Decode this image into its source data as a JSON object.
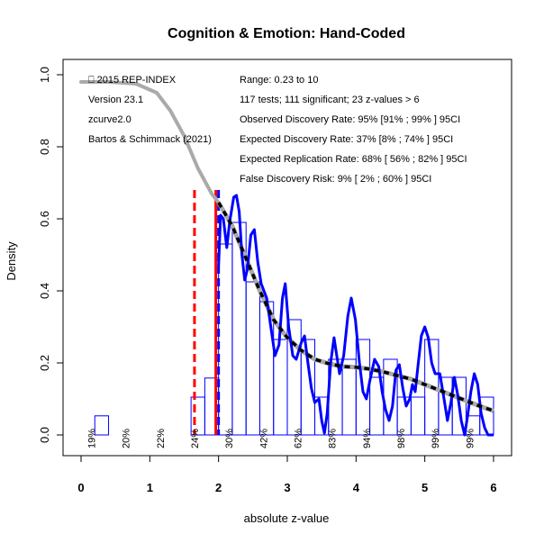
{
  "chart_data": {
    "type": "histogram",
    "title": "Cognition & Emotion: Hand-Coded",
    "xlabel": "absolute z-value",
    "ylabel": "Density",
    "xlim": [
      0,
      6
    ],
    "ylim": [
      0,
      1.0
    ],
    "x_ticks": [
      "0",
      "1",
      "2",
      "3",
      "4",
      "5",
      "6"
    ],
    "y_ticks": [
      "0.0",
      "0.2",
      "0.4",
      "0.6",
      "0.8",
      "1.0"
    ],
    "x_tick_values": [
      0,
      1,
      2,
      3,
      4,
      5,
      6
    ],
    "y_tick_values": [
      0,
      0.2,
      0.4,
      0.6,
      0.8,
      1.0
    ],
    "bin_width": 0.2,
    "bins": [
      {
        "x0": 0.2,
        "density": 0.053
      },
      {
        "x0": 0.4,
        "density": 0.0
      },
      {
        "x0": 0.6,
        "density": 0.0
      },
      {
        "x0": 0.8,
        "density": 0.0
      },
      {
        "x0": 1.0,
        "density": 0.0
      },
      {
        "x0": 1.2,
        "density": 0.0
      },
      {
        "x0": 1.4,
        "density": 0.0
      },
      {
        "x0": 1.6,
        "density": 0.105
      },
      {
        "x0": 1.8,
        "density": 0.158
      },
      {
        "x0": 2.0,
        "density": 0.53
      },
      {
        "x0": 2.2,
        "density": 0.59
      },
      {
        "x0": 2.4,
        "density": 0.425
      },
      {
        "x0": 2.6,
        "density": 0.37
      },
      {
        "x0": 2.8,
        "density": 0.265
      },
      {
        "x0": 3.0,
        "density": 0.32
      },
      {
        "x0": 3.2,
        "density": 0.265
      },
      {
        "x0": 3.4,
        "density": 0.105
      },
      {
        "x0": 3.6,
        "density": 0.21
      },
      {
        "x0": 3.8,
        "density": 0.21
      },
      {
        "x0": 4.0,
        "density": 0.265
      },
      {
        "x0": 4.2,
        "density": 0.16
      },
      {
        "x0": 4.4,
        "density": 0.21
      },
      {
        "x0": 4.6,
        "density": 0.105
      },
      {
        "x0": 4.8,
        "density": 0.105
      },
      {
        "x0": 5.0,
        "density": 0.265
      },
      {
        "x0": 5.2,
        "density": 0.16
      },
      {
        "x0": 5.4,
        "density": 0.16
      },
      {
        "x0": 5.6,
        "density": 0.053
      },
      {
        "x0": 5.8,
        "density": 0.105
      }
    ],
    "power_labels": [
      {
        "x": 0.15,
        "label": "19%"
      },
      {
        "x": 0.65,
        "label": "20%"
      },
      {
        "x": 1.15,
        "label": "22%"
      },
      {
        "x": 1.65,
        "label": "24%"
      },
      {
        "x": 2.15,
        "label": "30%"
      },
      {
        "x": 2.65,
        "label": "42%"
      },
      {
        "x": 3.15,
        "label": "62%"
      },
      {
        "x": 3.65,
        "label": "83%"
      },
      {
        "x": 4.15,
        "label": "94%"
      },
      {
        "x": 4.65,
        "label": "98%"
      },
      {
        "x": 5.15,
        "label": "99%"
      },
      {
        "x": 5.65,
        "label": "99%"
      }
    ],
    "vertical_lines": [
      {
        "x": 1.65,
        "style": "dashed",
        "color": "#ff0000"
      },
      {
        "x": 1.96,
        "style": "solid",
        "color": "#ff0000"
      },
      {
        "x": 2.0,
        "style": "dashed",
        "color": "#0000ff"
      }
    ],
    "model_curve_gray": [
      [
        0,
        0.98
      ],
      [
        0.4,
        0.98
      ],
      [
        0.8,
        0.975
      ],
      [
        1.1,
        0.95
      ],
      [
        1.3,
        0.9
      ],
      [
        1.5,
        0.83
      ],
      [
        1.7,
        0.74
      ],
      [
        1.9,
        0.67
      ],
      [
        2.0,
        0.645
      ]
    ],
    "model_curve_dashed": [
      [
        2.0,
        0.645
      ],
      [
        2.2,
        0.58
      ],
      [
        2.4,
        0.49
      ],
      [
        2.6,
        0.4
      ],
      [
        2.8,
        0.32
      ],
      [
        3.0,
        0.27
      ],
      [
        3.2,
        0.235
      ],
      [
        3.4,
        0.21
      ],
      [
        3.6,
        0.198
      ],
      [
        3.8,
        0.19
      ],
      [
        4.0,
        0.188
      ],
      [
        4.2,
        0.183
      ],
      [
        4.4,
        0.175
      ],
      [
        4.6,
        0.165
      ],
      [
        4.8,
        0.155
      ],
      [
        5.0,
        0.14
      ],
      [
        5.2,
        0.125
      ],
      [
        5.4,
        0.11
      ],
      [
        5.6,
        0.095
      ],
      [
        5.8,
        0.08
      ],
      [
        6.0,
        0.067
      ]
    ],
    "density_curve": [
      [
        2.0,
        0.47
      ],
      [
        2.03,
        0.61
      ],
      [
        2.07,
        0.6
      ],
      [
        2.12,
        0.52
      ],
      [
        2.16,
        0.59
      ],
      [
        2.22,
        0.66
      ],
      [
        2.26,
        0.665
      ],
      [
        2.3,
        0.62
      ],
      [
        2.34,
        0.5
      ],
      [
        2.38,
        0.43
      ],
      [
        2.42,
        0.46
      ],
      [
        2.47,
        0.555
      ],
      [
        2.52,
        0.57
      ],
      [
        2.57,
        0.48
      ],
      [
        2.62,
        0.42
      ],
      [
        2.7,
        0.38
      ],
      [
        2.76,
        0.3
      ],
      [
        2.82,
        0.22
      ],
      [
        2.88,
        0.25
      ],
      [
        2.93,
        0.38
      ],
      [
        2.97,
        0.42
      ],
      [
        3.02,
        0.3
      ],
      [
        3.08,
        0.22
      ],
      [
        3.13,
        0.21
      ],
      [
        3.2,
        0.255
      ],
      [
        3.25,
        0.275
      ],
      [
        3.3,
        0.2
      ],
      [
        3.35,
        0.13
      ],
      [
        3.4,
        0.09
      ],
      [
        3.46,
        0.1
      ],
      [
        3.5,
        0.04
      ],
      [
        3.54,
        0.005
      ],
      [
        3.58,
        0.06
      ],
      [
        3.63,
        0.2
      ],
      [
        3.68,
        0.27
      ],
      [
        3.72,
        0.22
      ],
      [
        3.76,
        0.17
      ],
      [
        3.82,
        0.22
      ],
      [
        3.88,
        0.33
      ],
      [
        3.93,
        0.38
      ],
      [
        3.99,
        0.32
      ],
      [
        4.05,
        0.2
      ],
      [
        4.1,
        0.12
      ],
      [
        4.15,
        0.1
      ],
      [
        4.2,
        0.15
      ],
      [
        4.27,
        0.21
      ],
      [
        4.33,
        0.19
      ],
      [
        4.38,
        0.12
      ],
      [
        4.43,
        0.07
      ],
      [
        4.48,
        0.04
      ],
      [
        4.53,
        0.08
      ],
      [
        4.58,
        0.18
      ],
      [
        4.63,
        0.195
      ],
      [
        4.68,
        0.13
      ],
      [
        4.73,
        0.08
      ],
      [
        4.78,
        0.1
      ],
      [
        4.82,
        0.14
      ],
      [
        4.86,
        0.12
      ],
      [
        4.9,
        0.19
      ],
      [
        4.95,
        0.275
      ],
      [
        5.0,
        0.3
      ],
      [
        5.05,
        0.27
      ],
      [
        5.1,
        0.2
      ],
      [
        5.15,
        0.17
      ],
      [
        5.22,
        0.17
      ],
      [
        5.28,
        0.1
      ],
      [
        5.33,
        0.04
      ],
      [
        5.38,
        0.09
      ],
      [
        5.43,
        0.16
      ],
      [
        5.48,
        0.11
      ],
      [
        5.53,
        0.04
      ],
      [
        5.58,
        0.0
      ],
      [
        5.62,
        0.05
      ],
      [
        5.67,
        0.12
      ],
      [
        5.72,
        0.17
      ],
      [
        5.77,
        0.14
      ],
      [
        5.82,
        0.06
      ],
      [
        5.87,
        0.02
      ],
      [
        5.92,
        0.0
      ],
      [
        5.97,
        0.0
      ],
      [
        6.0,
        0.0
      ]
    ]
  },
  "annotations_left": [
    "⎕ 2015 REP-INDEX",
    "Version 23.1",
    "zcurve2.0",
    "Bartos & Schimmack (2021)"
  ],
  "annotations_right": [
    "Range: 0.23 to 10",
    "117 tests; 111 significant; 23 z-values > 6",
    "Observed Discovery Rate: 95% [91% ; 99% ] 95CI",
    "Expected Discovery Rate: 37% [8% ; 74% ] 95CI",
    "Expected Replication Rate: 68% [ 56% ; 82% ] 95CI",
    "False Discovery Risk: 9% [ 2% ; 60% ] 95CI"
  ],
  "colors": {
    "bars": "#0000ff",
    "density_curve": "#0000ff",
    "gray_curve": "#aaaaaa",
    "model_dashed": "#000000",
    "critical_lines": "#ff0000",
    "axes": "#000000"
  }
}
